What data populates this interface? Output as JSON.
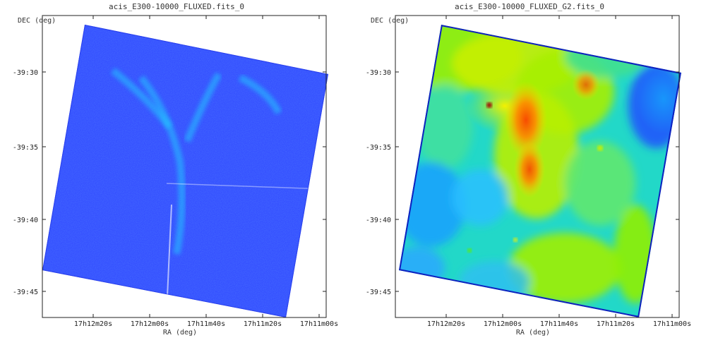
{
  "chart_data": [
    {
      "type": "heatmap",
      "title": "acis_E300-10000_FLUXED.fits_0",
      "xlabel": "RA (deg)",
      "ylabel": "DEC (deg)",
      "x_ticks": [
        "17h12m20s",
        "17h12m00s",
        "17h11m40s",
        "17h11m20s",
        "17h11m00s"
      ],
      "y_ticks": [
        "-39:30",
        "-39:35",
        "-39:40",
        "-39:45"
      ],
      "colormap": "blue-cyan (counts)",
      "features": [
        "diffuse emission V-shaped filaments near top-center"
      ]
    },
    {
      "type": "heatmap",
      "title": "acis_E300-10000_FLUXED_G2.fits_0",
      "xlabel": "RA (deg)",
      "ylabel": "DEC (deg)",
      "x_ticks": [
        "17h12m20s",
        "17h12m00s",
        "17h11m40s",
        "17h11m20s",
        "17h11m00s"
      ],
      "y_ticks": [
        "-39:30",
        "-39:35",
        "-39:40",
        "-39:45"
      ],
      "colormap": "rainbow (smoothed)",
      "features": [
        "bright orange/red ridge near center-top",
        "red point source",
        "yellow-green filaments"
      ]
    }
  ]
}
